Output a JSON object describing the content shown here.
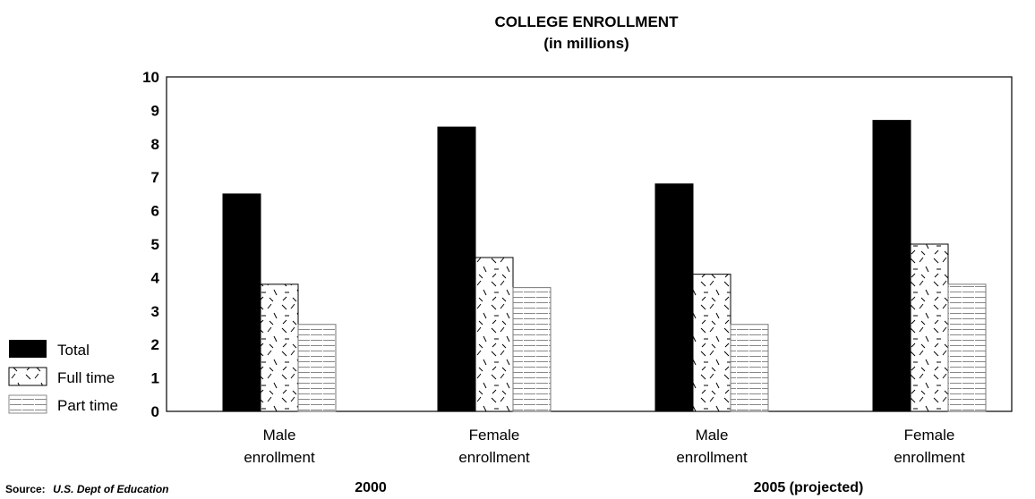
{
  "chart_data": {
    "type": "bar",
    "title": [
      "COLLEGE ENROLLMENT",
      "(in millions)"
    ],
    "ylim": [
      0,
      10
    ],
    "yticks": [
      "0",
      "1",
      "2",
      "3",
      "4",
      "5",
      "6",
      "7",
      "8",
      "9",
      "10"
    ],
    "categories": [
      [
        "Male",
        "enrollment"
      ],
      [
        "Female",
        "enrollment"
      ],
      [
        "Male",
        "enrollment"
      ],
      [
        "Female",
        "enrollment"
      ]
    ],
    "groups": [
      "2000",
      "2005 (projected)"
    ],
    "series": [
      {
        "name": "Total",
        "values": [
          6.5,
          8.5,
          6.8,
          8.7
        ],
        "color": "#000000",
        "pattern": "solid"
      },
      {
        "name": "Full time",
        "values": [
          3.8,
          4.6,
          4.1,
          5.0
        ],
        "color": "#000000",
        "pattern": "dashes"
      },
      {
        "name": "Part time",
        "values": [
          2.6,
          3.7,
          2.6,
          3.8
        ],
        "color": "#000000",
        "pattern": "horizontal-lines"
      }
    ],
    "legend_position": "left",
    "grid": false
  },
  "source": {
    "label": "Source:",
    "value": "U.S. Dept of Education"
  }
}
